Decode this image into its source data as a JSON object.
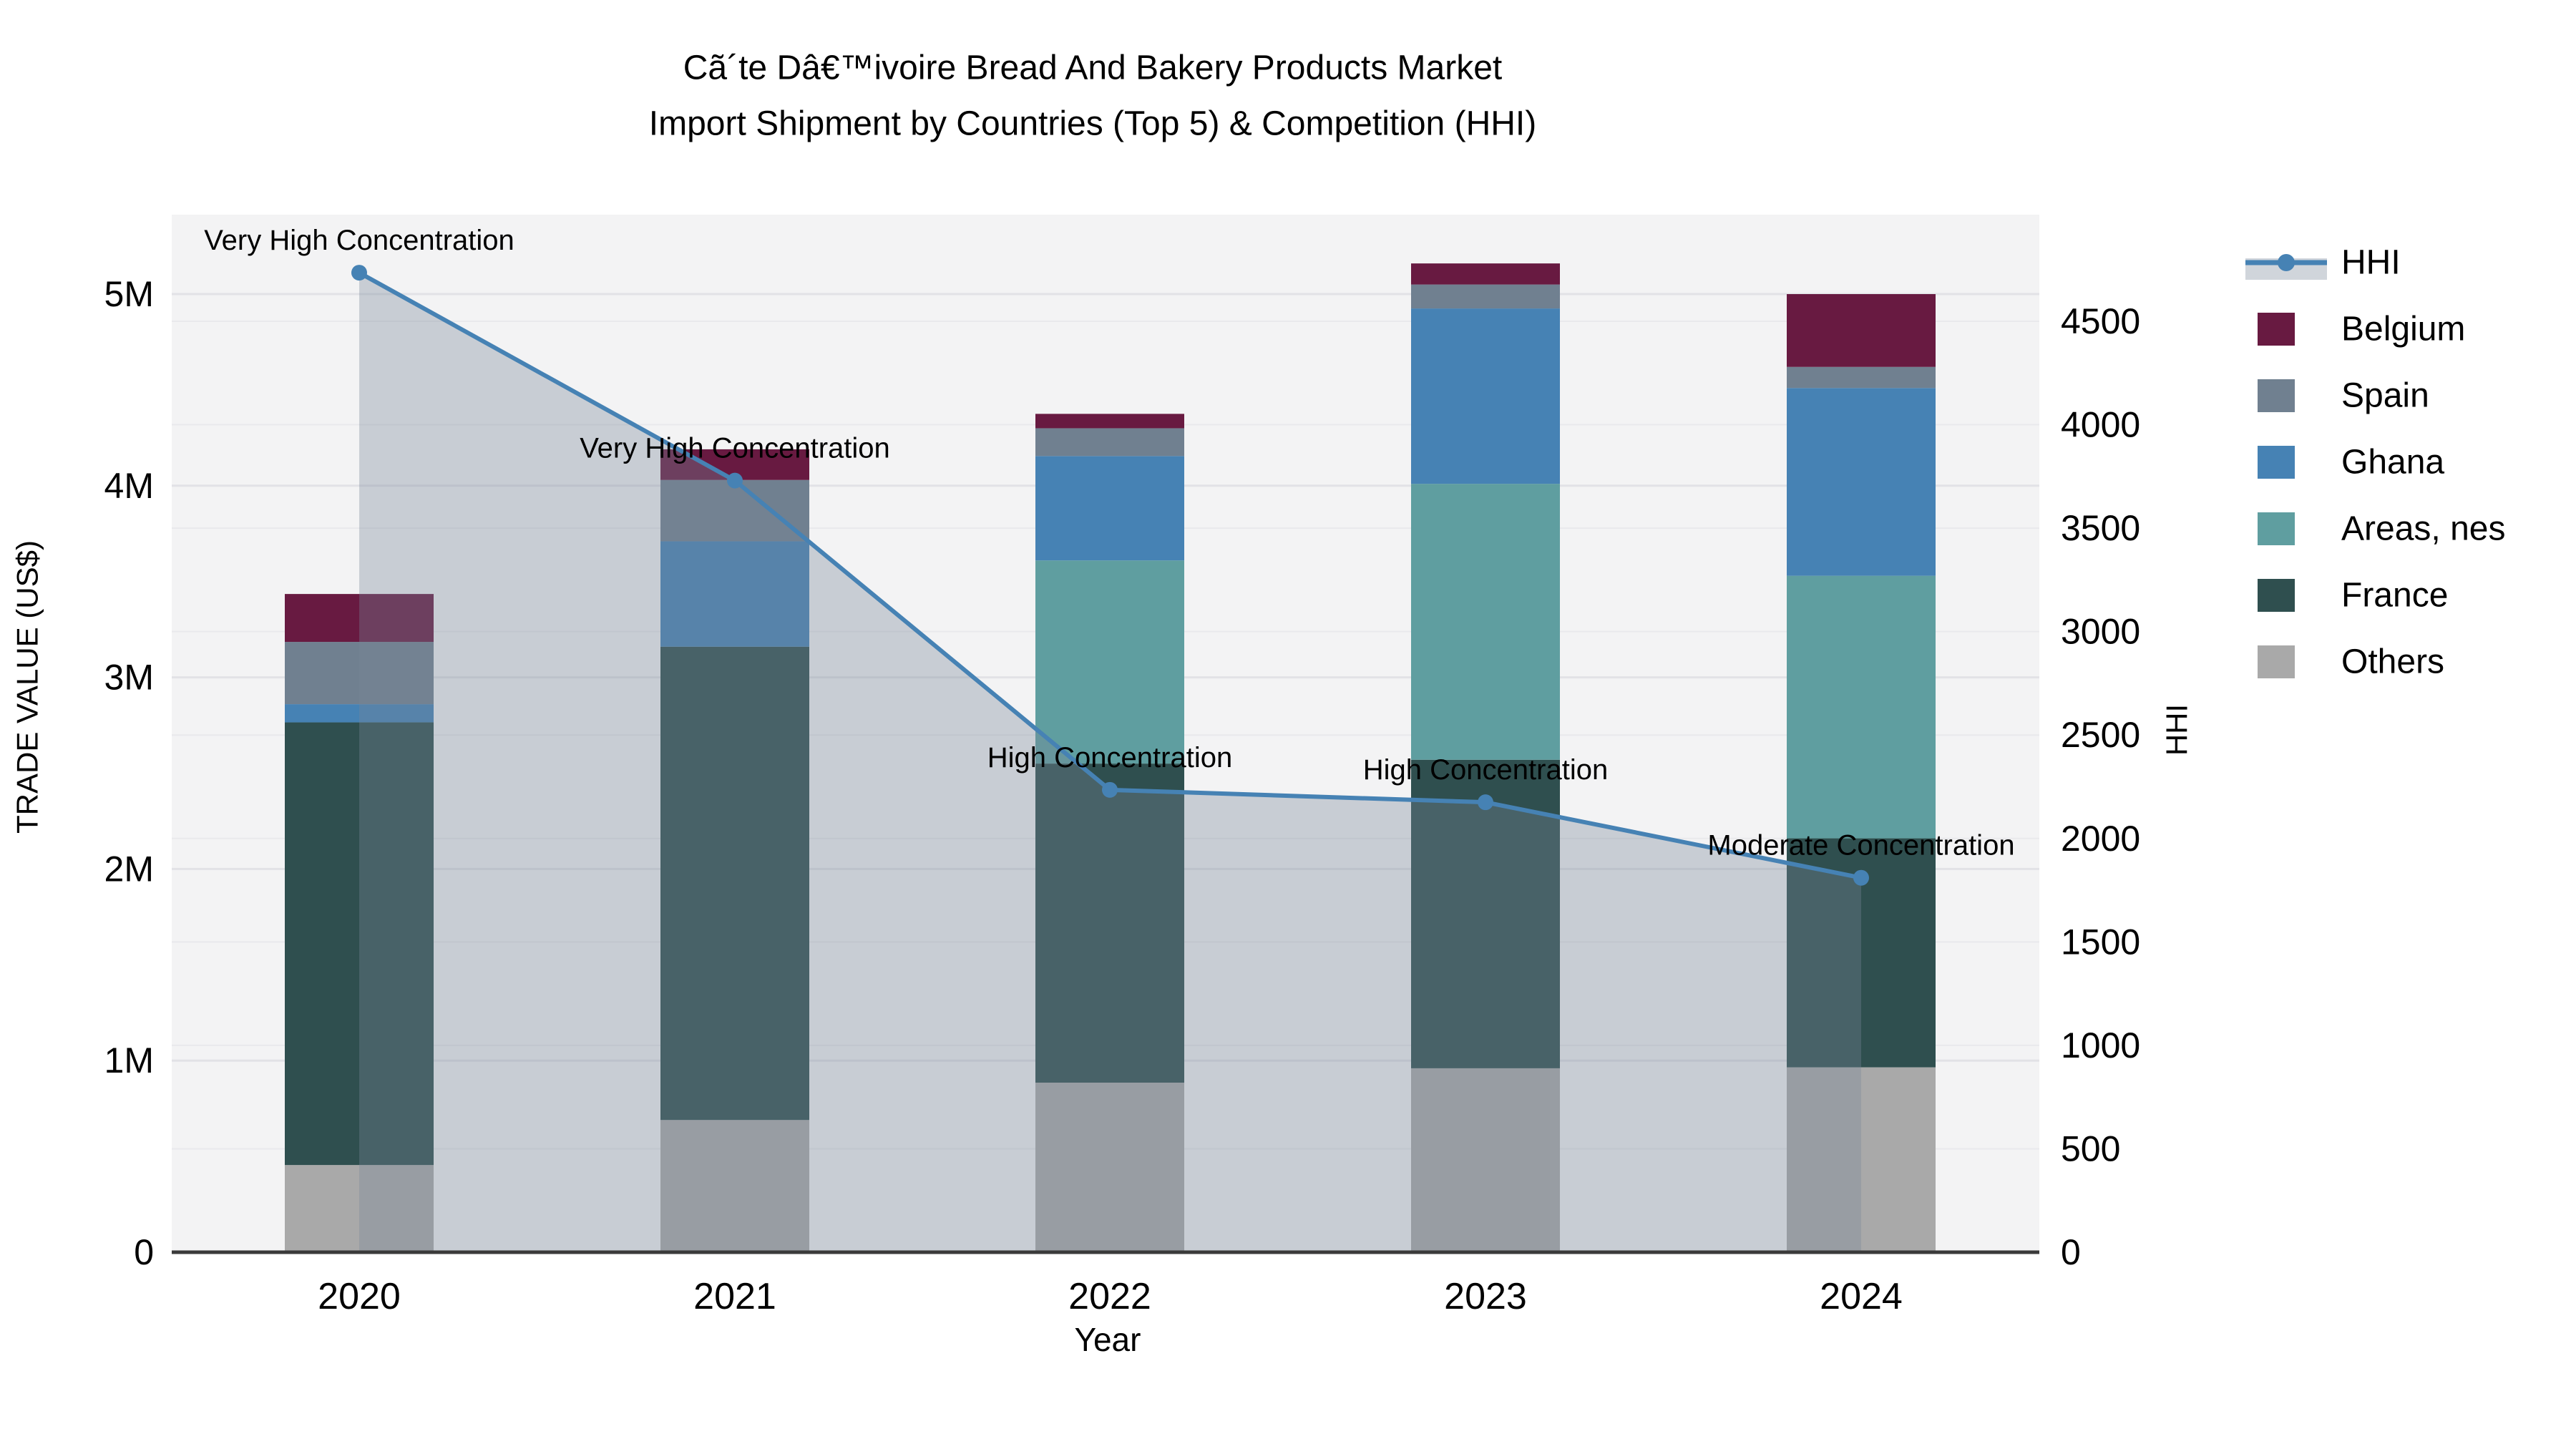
{
  "chart_data": {
    "type": "bar",
    "subtype": "stacked-bar-with-line-overlay",
    "title_line1": "Cã´te Dâ€™ivoire Bread And Bakery Products Market",
    "title_line2": "Import Shipment by Countries (Top 5) & Competition (HHI)",
    "xlabel": "Year",
    "ylabel_left": "TRADE VALUE (US$)",
    "ylabel_right": "HHI",
    "categories": [
      "2020",
      "2021",
      "2022",
      "2023",
      "2024"
    ],
    "y_left_ticks": [
      "0",
      "1M",
      "2M",
      "3M",
      "4M",
      "5M"
    ],
    "y_left_tick_values_musd": [
      0,
      1,
      2,
      3,
      4,
      5
    ],
    "y_right_ticks": [
      "0",
      "500",
      "1000",
      "1500",
      "2000",
      "2500",
      "3000",
      "3500",
      "4000",
      "4500"
    ],
    "y_right_tick_values": [
      0,
      500,
      1000,
      1500,
      2000,
      2500,
      3000,
      3500,
      4000,
      4500
    ],
    "ylim_left_musd": [
      0,
      5.42
    ],
    "ylim_right_hhi": [
      0,
      5015
    ],
    "grid": true,
    "legend_position": "right",
    "series": [
      {
        "name": "Others",
        "color": "#a9a9a9",
        "values_musd": [
          0.455,
          0.69,
          0.885,
          0.96,
          0.965
        ]
      },
      {
        "name": "France",
        "color": "#2f4f4f",
        "values_musd": [
          2.31,
          2.47,
          1.665,
          1.61,
          1.195
        ]
      },
      {
        "name": "Areas, nes",
        "color": "#5f9ea0",
        "values_musd": [
          0,
          0,
          1.06,
          1.44,
          1.37
        ]
      },
      {
        "name": "Ghana",
        "color": "#4682b4",
        "values_musd": [
          0.095,
          0.55,
          0.545,
          0.915,
          0.98
        ]
      },
      {
        "name": "Spain",
        "color": "#708090",
        "values_musd": [
          0.325,
          0.32,
          0.145,
          0.125,
          0.11
        ]
      },
      {
        "name": "Belgium",
        "color": "#681a41",
        "values_musd": [
          0.25,
          0.16,
          0.075,
          0.11,
          0.38
        ]
      }
    ],
    "bar_totals_musd": [
      3.435,
      4.19,
      4.375,
      5.16,
      5.0
    ],
    "hhi_line": {
      "name": "HHI",
      "color": "#4682b4",
      "area_fill_color": "rgba(119,136,153,0.35)",
      "values": [
        4735,
        3730,
        2235,
        2175,
        1810
      ]
    },
    "annotations": [
      {
        "text": "Very High Concentration",
        "year": "2020"
      },
      {
        "text": "Very High Concentration",
        "year": "2021"
      },
      {
        "text": "High Concentration",
        "year": "2022"
      },
      {
        "text": "High Concentration",
        "year": "2023"
      },
      {
        "text": "Moderate Concentration",
        "year": "2024"
      }
    ]
  },
  "legend": {
    "items": [
      {
        "label": "HHI",
        "type": "line",
        "color": "#4682b4"
      },
      {
        "label": "Belgium",
        "type": "swatch",
        "color": "#681a41"
      },
      {
        "label": "Spain",
        "type": "swatch",
        "color": "#708090"
      },
      {
        "label": "Ghana",
        "type": "swatch",
        "color": "#4682b4"
      },
      {
        "label": "Areas, nes",
        "type": "swatch",
        "color": "#5f9ea0"
      },
      {
        "label": "France",
        "type": "swatch",
        "color": "#2f4f4f"
      },
      {
        "label": "Others",
        "type": "swatch",
        "color": "#a9a9a9"
      }
    ]
  },
  "colors": {
    "plot_background": "#f3f3f4",
    "figure_background": "#ffffff",
    "grid_minor": "#e9e9ec",
    "grid_major": "#e2e2e6",
    "axis_line": "#3a3a3a",
    "text": "#000000",
    "accent_line": "#4682b4",
    "area_fill": "rgba(119,136,153,0.35)"
  }
}
